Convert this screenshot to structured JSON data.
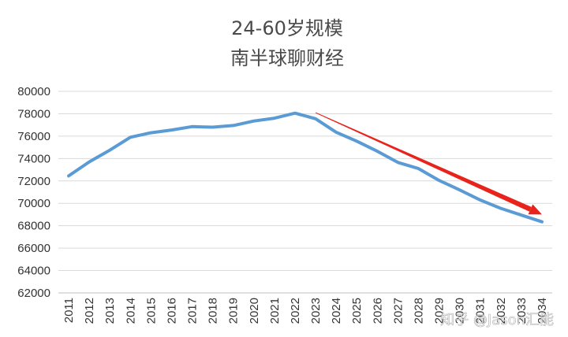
{
  "chart_data": {
    "type": "line",
    "title": "24-60岁规模",
    "subtitle": "南半球聊财经",
    "x": [
      "2011",
      "2012",
      "2013",
      "2014",
      "2015",
      "2016",
      "2017",
      "2018",
      "2019",
      "2020",
      "2021",
      "2022",
      "2023",
      "2024",
      "2025",
      "2026",
      "2027",
      "2028",
      "2029",
      "2030",
      "2031",
      "2032",
      "2033",
      "2034"
    ],
    "series": [
      {
        "values": [
          72450,
          73700,
          74750,
          75900,
          76300,
          76550,
          76850,
          76800,
          76950,
          77350,
          77600,
          78050,
          77550,
          76350,
          75550,
          74650,
          73650,
          73100,
          72050,
          71200,
          70300,
          69550,
          68950,
          68350
        ],
        "color": "#5b9bd5"
      }
    ],
    "ylim": [
      62000,
      80000
    ],
    "yticks": [
      62000,
      64000,
      66000,
      68000,
      70000,
      72000,
      74000,
      76000,
      78000,
      80000
    ],
    "grid": true,
    "legend": "none",
    "annotation": {
      "type": "trend-arrow",
      "from": {
        "x": "2023",
        "y": 78100
      },
      "to": {
        "x": "2034",
        "y": 69000
      },
      "color": "#e8231c"
    }
  },
  "watermark": "知乎 @Jason汇能"
}
